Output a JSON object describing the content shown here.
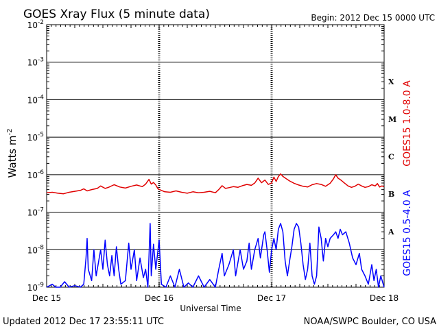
{
  "chart_data": {
    "type": "line",
    "title": "GOES Xray Flux (5 minute data)",
    "begin_label": "Begin:  2012 Dec 15 0000 UTC",
    "ylabel": "Watts m",
    "ylabel_sup": "-2",
    "xlabel": "Universal Time",
    "yscale": "log",
    "ylim": [
      1e-09,
      0.01
    ],
    "yticks": [
      {
        "base": "10",
        "exp": "-9"
      },
      {
        "base": "10",
        "exp": "-8"
      },
      {
        "base": "10",
        "exp": "-7"
      },
      {
        "base": "10",
        "exp": "-6"
      },
      {
        "base": "10",
        "exp": "-5"
      },
      {
        "base": "10",
        "exp": "-4"
      },
      {
        "base": "10",
        "exp": "-3"
      },
      {
        "base": "10",
        "exp": "-2"
      }
    ],
    "x_range_days": [
      0,
      3
    ],
    "x_ticks": [
      "Dec 15",
      "Dec 16",
      "Dec 17",
      "Dec 18"
    ],
    "flare_classes": [
      "A",
      "B",
      "C",
      "M",
      "X"
    ],
    "grid": true,
    "series": [
      {
        "name": "GOES15 1.0-8.0 A",
        "color": "#e00000",
        "points": [
          [
            0.0,
            3.3e-07
          ],
          [
            0.05,
            3.4e-07
          ],
          [
            0.1,
            3.2e-07
          ],
          [
            0.15,
            3.1e-07
          ],
          [
            0.2,
            3.4e-07
          ],
          [
            0.25,
            3.6e-07
          ],
          [
            0.3,
            3.8e-07
          ],
          [
            0.33,
            4.2e-07
          ],
          [
            0.36,
            3.7e-07
          ],
          [
            0.4,
            4e-07
          ],
          [
            0.45,
            4.3e-07
          ],
          [
            0.48,
            5e-07
          ],
          [
            0.52,
            4.3e-07
          ],
          [
            0.55,
            4.6e-07
          ],
          [
            0.6,
            5.4e-07
          ],
          [
            0.65,
            4.7e-07
          ],
          [
            0.7,
            4.4e-07
          ],
          [
            0.75,
            4.9e-07
          ],
          [
            0.8,
            5.3e-07
          ],
          [
            0.85,
            4.8e-07
          ],
          [
            0.88,
            5.6e-07
          ],
          [
            0.91,
            7.5e-07
          ],
          [
            0.93,
            5.6e-07
          ],
          [
            0.95,
            6.2e-07
          ],
          [
            0.97,
            5.3e-07
          ],
          [
            0.99,
            4.2e-07
          ],
          [
            1.02,
            3.8e-07
          ],
          [
            1.05,
            3.5e-07
          ],
          [
            1.1,
            3.4e-07
          ],
          [
            1.15,
            3.7e-07
          ],
          [
            1.2,
            3.4e-07
          ],
          [
            1.25,
            3.2e-07
          ],
          [
            1.3,
            3.5e-07
          ],
          [
            1.35,
            3.3e-07
          ],
          [
            1.4,
            3.4e-07
          ],
          [
            1.45,
            3.6e-07
          ],
          [
            1.5,
            3.3e-07
          ],
          [
            1.53,
            4e-07
          ],
          [
            1.56,
            5.1e-07
          ],
          [
            1.59,
            4.3e-07
          ],
          [
            1.62,
            4.5e-07
          ],
          [
            1.66,
            4.8e-07
          ],
          [
            1.7,
            4.6e-07
          ],
          [
            1.74,
            5.1e-07
          ],
          [
            1.78,
            5.5e-07
          ],
          [
            1.82,
            5.2e-07
          ],
          [
            1.85,
            6e-07
          ],
          [
            1.88,
            8.1e-07
          ],
          [
            1.91,
            6.1e-07
          ],
          [
            1.94,
            7.2e-07
          ],
          [
            1.97,
            5.5e-07
          ],
          [
            2.0,
            6e-07
          ],
          [
            2.02,
            8.6e-07
          ],
          [
            2.04,
            6.6e-07
          ],
          [
            2.06,
            8.9e-07
          ],
          [
            2.08,
            1.05e-06
          ],
          [
            2.1,
            9e-07
          ],
          [
            2.13,
            7.8e-07
          ],
          [
            2.16,
            6.8e-07
          ],
          [
            2.2,
            5.9e-07
          ],
          [
            2.24,
            5.3e-07
          ],
          [
            2.28,
            4.9e-07
          ],
          [
            2.32,
            4.7e-07
          ],
          [
            2.36,
            5.4e-07
          ],
          [
            2.4,
            5.8e-07
          ],
          [
            2.44,
            5.5e-07
          ],
          [
            2.48,
            4.9e-07
          ],
          [
            2.52,
            5.9e-07
          ],
          [
            2.55,
            7.8e-07
          ],
          [
            2.57,
            1e-06
          ],
          [
            2.59,
            8.1e-07
          ],
          [
            2.62,
            7e-07
          ],
          [
            2.65,
            5.9e-07
          ],
          [
            2.68,
            5e-07
          ],
          [
            2.71,
            4.6e-07
          ],
          [
            2.74,
            4.9e-07
          ],
          [
            2.77,
            5.6e-07
          ],
          [
            2.8,
            5e-07
          ],
          [
            2.83,
            4.6e-07
          ],
          [
            2.86,
            4.8e-07
          ],
          [
            2.89,
            5.4e-07
          ],
          [
            2.92,
            5e-07
          ],
          [
            2.94,
            5.8e-07
          ],
          [
            2.96,
            4.7e-07
          ],
          [
            2.98,
            5e-07
          ],
          [
            3.0,
            4.8e-07
          ]
        ]
      },
      {
        "name": "GOES15 0.5-4.0 A",
        "color": "#0000ff",
        "points": [
          [
            0.0,
            1e-09
          ],
          [
            0.05,
            1.2e-09
          ],
          [
            0.08,
            1e-09
          ],
          [
            0.12,
            1e-09
          ],
          [
            0.16,
            1.4e-09
          ],
          [
            0.2,
            1e-09
          ],
          [
            0.25,
            1.1e-09
          ],
          [
            0.3,
            1e-09
          ],
          [
            0.33,
            1.2e-09
          ],
          [
            0.35,
            6e-09
          ],
          [
            0.36,
            2e-08
          ],
          [
            0.37,
            3e-09
          ],
          [
            0.4,
            1.5e-09
          ],
          [
            0.42,
            1e-08
          ],
          [
            0.44,
            2e-09
          ],
          [
            0.48,
            1e-08
          ],
          [
            0.5,
            3e-09
          ],
          [
            0.52,
            1.8e-08
          ],
          [
            0.54,
            4e-09
          ],
          [
            0.56,
            2e-09
          ],
          [
            0.58,
            7e-09
          ],
          [
            0.6,
            2e-09
          ],
          [
            0.62,
            1.2e-08
          ],
          [
            0.64,
            3e-09
          ],
          [
            0.66,
            1.2e-09
          ],
          [
            0.7,
            1.5e-09
          ],
          [
            0.73,
            1.5e-08
          ],
          [
            0.75,
            3e-09
          ],
          [
            0.78,
            1e-08
          ],
          [
            0.8,
            1.5e-09
          ],
          [
            0.83,
            6e-09
          ],
          [
            0.86,
            1.8e-09
          ],
          [
            0.88,
            3e-09
          ],
          [
            0.9,
            1e-09
          ],
          [
            0.92,
            5e-08
          ],
          [
            0.93,
            2e-09
          ],
          [
            0.95,
            1.4e-08
          ],
          [
            0.97,
            3e-09
          ],
          [
            1.0,
            1.8e-08
          ],
          [
            1.02,
            1.2e-09
          ],
          [
            1.06,
            1e-09
          ],
          [
            1.1,
            2e-09
          ],
          [
            1.14,
            1e-09
          ],
          [
            1.18,
            3e-09
          ],
          [
            1.22,
            1e-09
          ],
          [
            1.26,
            1.3e-09
          ],
          [
            1.3,
            1e-09
          ],
          [
            1.35,
            2e-09
          ],
          [
            1.4,
            1e-09
          ],
          [
            1.45,
            1.6e-09
          ],
          [
            1.5,
            1e-09
          ],
          [
            1.53,
            3e-09
          ],
          [
            1.56,
            8e-09
          ],
          [
            1.58,
            2e-09
          ],
          [
            1.62,
            4e-09
          ],
          [
            1.66,
            1e-08
          ],
          [
            1.68,
            2e-09
          ],
          [
            1.72,
            1e-08
          ],
          [
            1.75,
            3e-09
          ],
          [
            1.78,
            5e-09
          ],
          [
            1.8,
            1.5e-08
          ],
          [
            1.82,
            3e-09
          ],
          [
            1.85,
            1e-08
          ],
          [
            1.88,
            2e-08
          ],
          [
            1.9,
            6e-09
          ],
          [
            1.93,
            2.5e-08
          ],
          [
            1.94,
            3e-08
          ],
          [
            1.96,
            1e-08
          ],
          [
            1.98,
            2.5e-09
          ],
          [
            2.0,
            1e-08
          ],
          [
            2.02,
            2e-08
          ],
          [
            2.04,
            1e-08
          ],
          [
            2.06,
            3.5e-08
          ],
          [
            2.08,
            5e-08
          ],
          [
            2.1,
            3e-08
          ],
          [
            2.12,
            5e-09
          ],
          [
            2.14,
            2e-09
          ],
          [
            2.16,
            5e-09
          ],
          [
            2.18,
            1.2e-08
          ],
          [
            2.2,
            3.5e-08
          ],
          [
            2.22,
            5e-08
          ],
          [
            2.24,
            4e-08
          ],
          [
            2.26,
            1.5e-08
          ],
          [
            2.28,
            4e-09
          ],
          [
            2.3,
            1.6e-09
          ],
          [
            2.32,
            3e-09
          ],
          [
            2.34,
            1.5e-08
          ],
          [
            2.36,
            2e-09
          ],
          [
            2.38,
            1.2e-09
          ],
          [
            2.4,
            2e-09
          ],
          [
            2.42,
            4e-08
          ],
          [
            2.44,
            2e-08
          ],
          [
            2.46,
            5e-09
          ],
          [
            2.48,
            2e-08
          ],
          [
            2.5,
            1.2e-08
          ],
          [
            2.52,
            2e-08
          ],
          [
            2.55,
            2.5e-08
          ],
          [
            2.57,
            3e-08
          ],
          [
            2.59,
            2e-08
          ],
          [
            2.61,
            3.5e-08
          ],
          [
            2.63,
            2.5e-08
          ],
          [
            2.66,
            3e-08
          ],
          [
            2.69,
            1.5e-08
          ],
          [
            2.72,
            6e-09
          ],
          [
            2.75,
            4e-09
          ],
          [
            2.78,
            8e-09
          ],
          [
            2.8,
            3e-09
          ],
          [
            2.83,
            2e-09
          ],
          [
            2.86,
            1.2e-09
          ],
          [
            2.89,
            4e-09
          ],
          [
            2.91,
            1.5e-09
          ],
          [
            2.93,
            3e-09
          ],
          [
            2.95,
            1e-09
          ],
          [
            2.97,
            2e-09
          ],
          [
            3.0,
            1e-09
          ]
        ]
      }
    ]
  },
  "footer": {
    "updated": "Updated 2012 Dec 17 23:55:11 UTC",
    "credit": "NOAA/SWPC Boulder, CO USA"
  }
}
